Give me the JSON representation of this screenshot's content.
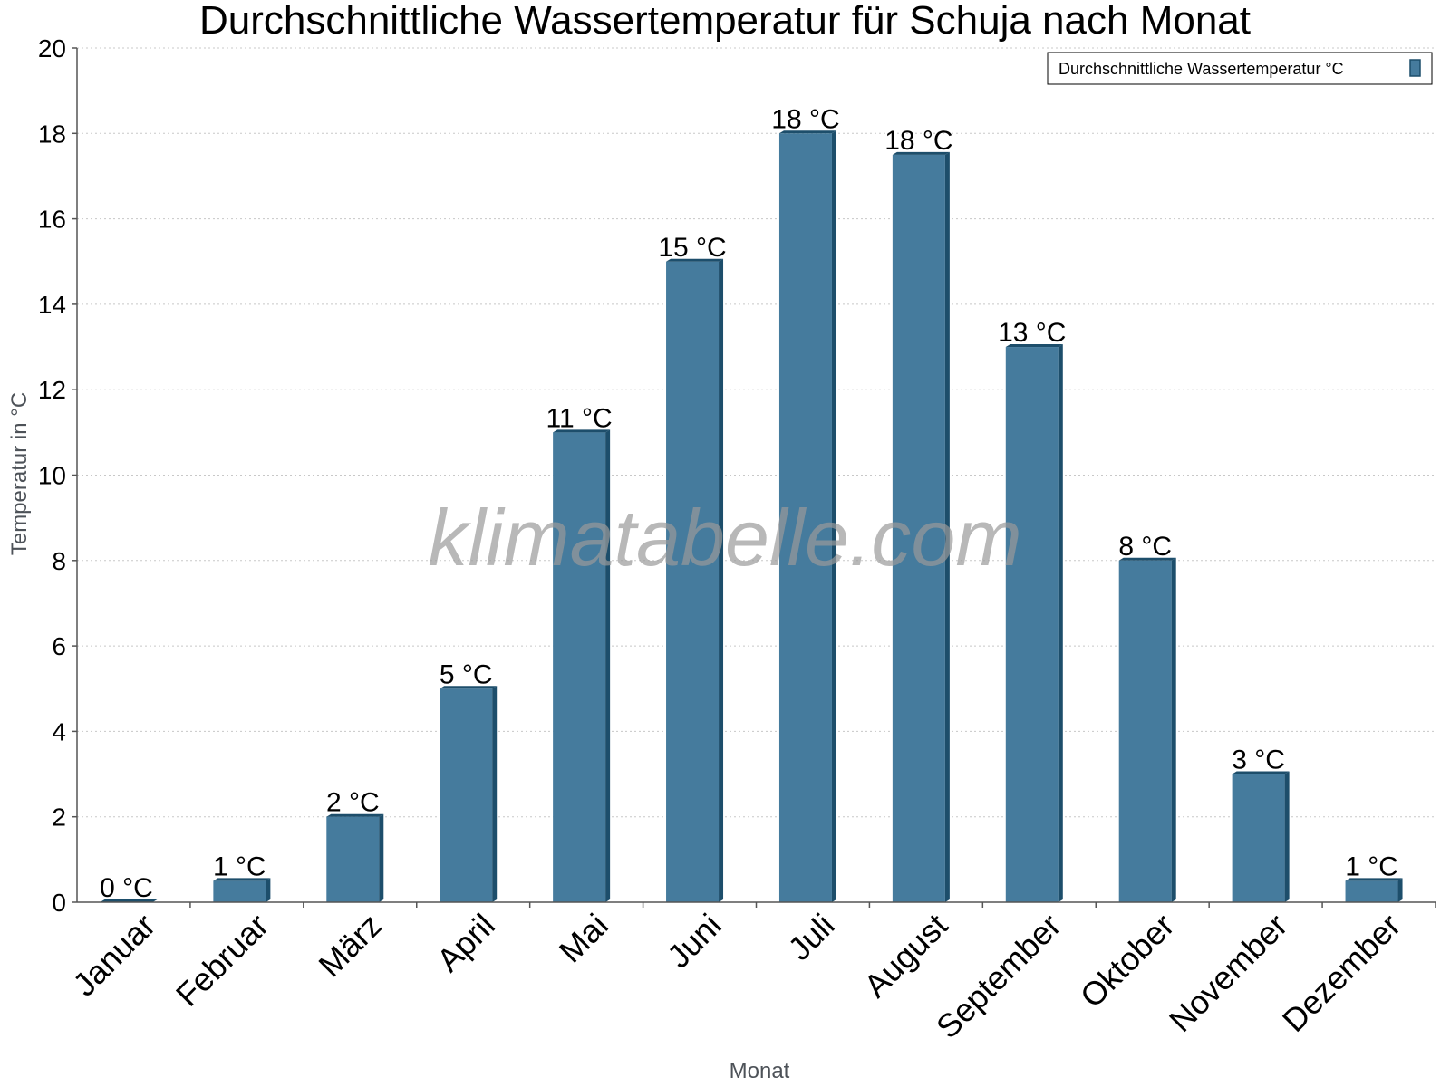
{
  "colors": {
    "bar_front": "#457b9d",
    "bar_side": "#1d4e6b",
    "bar_top": "#1d4e6b",
    "grid": "#c8c8c8",
    "axis": "#555555"
  },
  "watermark": "klimatabelle.com",
  "chart_data": {
    "type": "bar",
    "title": "Durchschnittliche Wassertemperatur für Schuja nach Monat",
    "xlabel": "Monat",
    "ylabel": "Temperatur in °C",
    "ylim": [
      0,
      20
    ],
    "yticks": [
      0,
      2,
      4,
      6,
      8,
      10,
      12,
      14,
      16,
      18,
      20
    ],
    "grid": true,
    "legend_position": "top-right",
    "categories": [
      "Januar",
      "Februar",
      "März",
      "April",
      "Mai",
      "Juni",
      "Juli",
      "August",
      "September",
      "Oktober",
      "November",
      "Dezember"
    ],
    "series": [
      {
        "name": "Durchschnittliche Wassertemperatur °C",
        "values": [
          0,
          0.5,
          2,
          5,
          11,
          15,
          18,
          17.5,
          13,
          8,
          3,
          0.5
        ],
        "labels": [
          "0 °C",
          "1 °C",
          "2 °C",
          "5 °C",
          "11 °C",
          "15 °C",
          "18 °C",
          "18 °C",
          "13 °C",
          "8 °C",
          "3 °C",
          "1 °C"
        ]
      }
    ]
  }
}
